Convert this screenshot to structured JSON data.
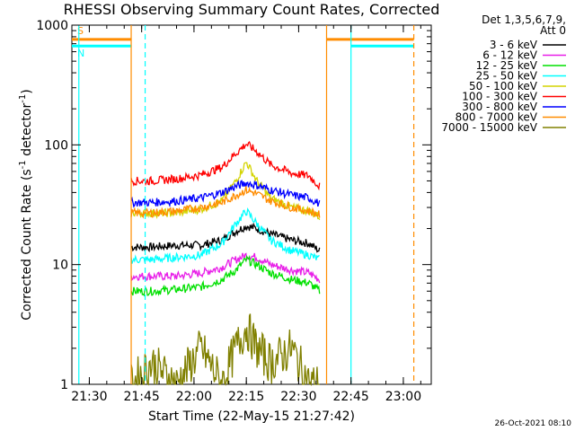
{
  "chart_data": {
    "type": "line",
    "title": "RHESSI Observing Summary Count Rates, Corrected",
    "xlabel": "Start Time (22-May-15 21:27:42)",
    "ylabel_main": "Corrected Count Rate (s",
    "ylabel_sup1": "-1",
    "ylabel_mid": " detector",
    "ylabel_sup2": "-1",
    "ylabel_end": ")",
    "yscale": "log",
    "xlim": [
      "21:25",
      "23:08"
    ],
    "ylim": [
      1,
      1000
    ],
    "x_ticks": [
      "21:30",
      "21:45",
      "22:00",
      "22:15",
      "22:30",
      "22:45",
      "23:00"
    ],
    "y_ticks": [
      "1",
      "10",
      "100",
      "1000"
    ],
    "legend": {
      "header1": "Det 1,3,5,6,7,9,",
      "header2": "Att 0",
      "placement": "outside-right"
    },
    "series": [
      {
        "name": "3 - 6 keV",
        "color": "#000000",
        "x": [
          "21:42",
          "21:48",
          "21:55",
          "22:02",
          "22:08",
          "22:12",
          "22:15",
          "22:18",
          "22:22",
          "22:28",
          "22:33",
          "22:36"
        ],
        "y": [
          14,
          14,
          14.5,
          14.5,
          16,
          19,
          21,
          20,
          18,
          16,
          15,
          13
        ]
      },
      {
        "name": "6 - 12 keV",
        "color": "#e81ee8",
        "x": [
          "21:42",
          "21:48",
          "21:55",
          "22:02",
          "22:08",
          "22:12",
          "22:15",
          "22:18",
          "22:22",
          "22:28",
          "22:33",
          "22:36"
        ],
        "y": [
          8,
          8,
          8,
          8.5,
          9.5,
          11,
          12,
          11.5,
          10,
          9,
          8.5,
          7.5
        ]
      },
      {
        "name": "12 - 25 keV",
        "color": "#00e000",
        "x": [
          "21:42",
          "21:48",
          "21:55",
          "22:02",
          "22:08",
          "22:12",
          "22:15",
          "22:18",
          "22:22",
          "22:28",
          "22:33",
          "22:36"
        ],
        "y": [
          6,
          6,
          6.2,
          6.5,
          7.5,
          9,
          11,
          10,
          8.5,
          7.5,
          7,
          6
        ]
      },
      {
        "name": "25 - 50 keV",
        "color": "#00ffff",
        "x": [
          "21:42",
          "21:48",
          "21:55",
          "22:02",
          "22:08",
          "22:12",
          "22:15",
          "22:18",
          "22:22",
          "22:28",
          "22:33",
          "22:36"
        ],
        "y": [
          11,
          11,
          11.5,
          12,
          15,
          22,
          28,
          22,
          16,
          13,
          12,
          11
        ]
      },
      {
        "name": "50 - 100 keV",
        "color": "#d4d400",
        "x": [
          "21:42",
          "21:48",
          "21:55",
          "22:02",
          "22:08",
          "22:12",
          "22:15",
          "22:18",
          "22:22",
          "22:28",
          "22:33",
          "22:36"
        ],
        "y": [
          27,
          27,
          27,
          29,
          34,
          50,
          72,
          50,
          36,
          30,
          28,
          25
        ]
      },
      {
        "name": "100 - 300 keV",
        "color": "#ff0000",
        "x": [
          "21:42",
          "21:48",
          "21:55",
          "22:02",
          "22:08",
          "22:12",
          "22:15",
          "22:18",
          "22:22",
          "22:28",
          "22:33",
          "22:36"
        ],
        "y": [
          50,
          50,
          52,
          56,
          65,
          85,
          102,
          88,
          68,
          58,
          55,
          45
        ]
      },
      {
        "name": "300 - 800 keV",
        "color": "#0000ff",
        "x": [
          "21:42",
          "21:48",
          "21:55",
          "22:02",
          "22:08",
          "22:12",
          "22:15",
          "22:18",
          "22:22",
          "22:28",
          "22:33",
          "22:36"
        ],
        "y": [
          33,
          33,
          34,
          36,
          40,
          45,
          48,
          46,
          42,
          38,
          36,
          32
        ]
      },
      {
        "name": "800 - 7000 keV",
        "color": "#ff8c00",
        "x": [
          "21:42",
          "21:48",
          "21:55",
          "22:02",
          "22:08",
          "22:12",
          "22:15",
          "22:18",
          "22:22",
          "22:28",
          "22:33",
          "22:36"
        ],
        "y": [
          27,
          27,
          28,
          30,
          33,
          38,
          42,
          39,
          34,
          30,
          28,
          26
        ]
      },
      {
        "name": "7000 - 15000 keV",
        "color": "#808000",
        "x": [
          "21:42",
          "21:48",
          "21:55",
          "22:02",
          "22:08",
          "22:12",
          "22:15",
          "22:18",
          "22:22",
          "22:28",
          "22:33",
          "22:36"
        ],
        "y": [
          1,
          1.5,
          1,
          2,
          1,
          2,
          3,
          2,
          1.5,
          2,
          1,
          1
        ]
      }
    ],
    "flags": [
      {
        "label": "S",
        "color": "#ff8c00",
        "x_start": "21:25",
        "x_end": "21:42",
        "value": 760,
        "style": "solid"
      },
      {
        "label": "N",
        "color": "#00ffff",
        "x_start": "21:25",
        "x_end": "21:42",
        "value": 670,
        "style": "solid"
      },
      {
        "label": "",
        "color": "#ff8c00",
        "x_start": "22:38",
        "x_end": "23:03",
        "value": 760,
        "style": "solid"
      },
      {
        "label": "",
        "color": "#00ffff",
        "x_start": "22:45",
        "x_end": "23:03",
        "value": 670,
        "style": "solid"
      }
    ],
    "vlines": [
      {
        "x": "21:27",
        "color": "#00ffff",
        "style": "solid"
      },
      {
        "x": "21:42",
        "color": "#ff8c00",
        "style": "solid"
      },
      {
        "x": "21:46",
        "color": "#00ffff",
        "style": "dashed"
      },
      {
        "x": "22:38",
        "color": "#ff8c00",
        "style": "solid"
      },
      {
        "x": "22:45",
        "color": "#00ffff",
        "style": "solid"
      },
      {
        "x": "23:03",
        "color": "#ff8c00",
        "style": "dashed"
      }
    ],
    "timestamp": "26-Oct-2021 08:10"
  }
}
